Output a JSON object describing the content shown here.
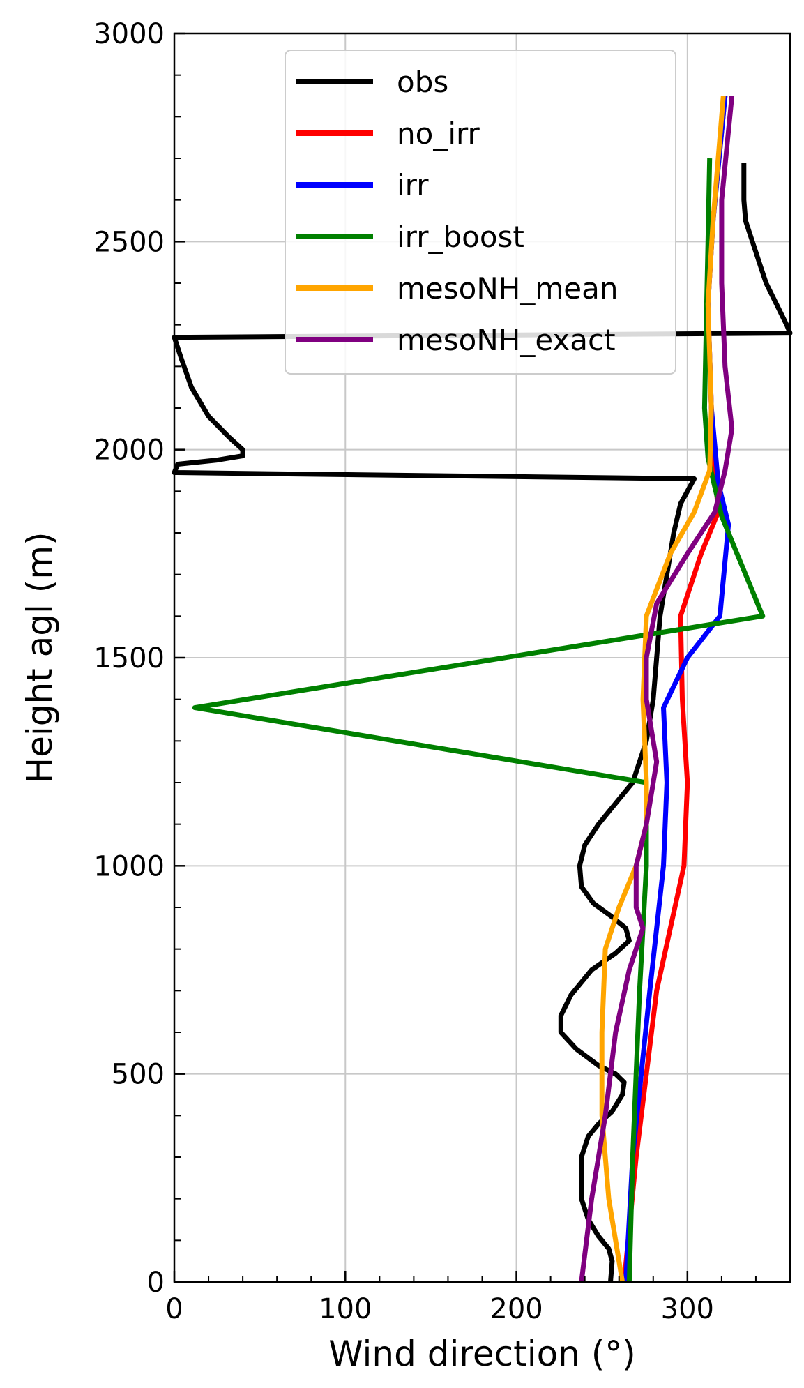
{
  "chart_data": {
    "type": "line",
    "title": "",
    "xlabel": "Wind direction (°)",
    "ylabel": "Height agl (m)",
    "xlim": [
      0,
      360
    ],
    "ylim": [
      0,
      3000
    ],
    "xticks": [
      0,
      100,
      200,
      300
    ],
    "yticks": [
      0,
      500,
      1000,
      1500,
      2000,
      2500,
      3000
    ],
    "grid": true,
    "legend_position": "top-center",
    "series": [
      {
        "name": "obs",
        "color": "#000000",
        "points": [
          [
            255,
            0
          ],
          [
            256,
            50
          ],
          [
            254,
            80
          ],
          [
            248,
            110
          ],
          [
            242,
            150
          ],
          [
            238,
            200
          ],
          [
            238,
            250
          ],
          [
            238,
            300
          ],
          [
            242,
            350
          ],
          [
            248,
            380
          ],
          [
            256,
            410
          ],
          [
            262,
            450
          ],
          [
            263,
            480
          ],
          [
            258,
            500
          ],
          [
            248,
            520
          ],
          [
            235,
            560
          ],
          [
            226,
            600
          ],
          [
            226,
            640
          ],
          [
            232,
            690
          ],
          [
            244,
            750
          ],
          [
            258,
            790
          ],
          [
            266,
            820
          ],
          [
            264,
            850
          ],
          [
            255,
            880
          ],
          [
            245,
            910
          ],
          [
            238,
            950
          ],
          [
            237,
            1000
          ],
          [
            240,
            1050
          ],
          [
            248,
            1100
          ],
          [
            258,
            1150
          ],
          [
            268,
            1200
          ],
          [
            276,
            1300
          ],
          [
            280,
            1400
          ],
          [
            282,
            1500
          ],
          [
            284,
            1600
          ],
          [
            288,
            1700
          ],
          [
            292,
            1800
          ],
          [
            296,
            1870
          ],
          [
            300,
            1900
          ],
          [
            304,
            1930
          ],
          [
            0,
            1945
          ],
          [
            2,
            1965
          ],
          [
            25,
            1975
          ],
          [
            40,
            1985
          ],
          [
            40,
            2000
          ],
          [
            32,
            2030
          ],
          [
            20,
            2080
          ],
          [
            10,
            2150
          ],
          [
            4,
            2220
          ],
          [
            0,
            2270
          ],
          [
            360,
            2280
          ],
          [
            358,
            2300
          ],
          [
            352,
            2350
          ],
          [
            346,
            2400
          ],
          [
            342,
            2450
          ],
          [
            338,
            2500
          ],
          [
            334,
            2550
          ],
          [
            333,
            2600
          ],
          [
            333,
            2650
          ],
          [
            333,
            2690
          ]
        ]
      },
      {
        "name": "no_irr",
        "color": "#ff0000",
        "points": [
          [
            263,
            0
          ],
          [
            270,
            300
          ],
          [
            282,
            700
          ],
          [
            298,
            1000
          ],
          [
            300,
            1200
          ],
          [
            297,
            1400
          ],
          [
            296,
            1600
          ],
          [
            308,
            1750
          ],
          [
            318,
            1850
          ],
          [
            316,
            1950
          ],
          [
            314,
            2100
          ],
          [
            312,
            2350
          ],
          [
            315,
            2550
          ],
          [
            322,
            2850
          ]
        ]
      },
      {
        "name": "irr",
        "color": "#0000ff",
        "points": [
          [
            264,
            0
          ],
          [
            268,
            300
          ],
          [
            278,
            700
          ],
          [
            286,
            1000
          ],
          [
            288,
            1200
          ],
          [
            286,
            1380
          ],
          [
            300,
            1500
          ],
          [
            319,
            1600
          ],
          [
            324,
            1820
          ],
          [
            318,
            1920
          ],
          [
            314,
            2100
          ],
          [
            312,
            2350
          ],
          [
            315,
            2550
          ],
          [
            322,
            2850
          ]
        ]
      },
      {
        "name": "irr_boost",
        "color": "#008000",
        "points": [
          [
            266,
            0
          ],
          [
            268,
            300
          ],
          [
            272,
            700
          ],
          [
            276,
            1000
          ],
          [
            276,
            1200
          ],
          [
            12,
            1380
          ],
          [
            344,
            1600
          ],
          [
            320,
            1840
          ],
          [
            312,
            1980
          ],
          [
            310,
            2100
          ],
          [
            311,
            2300
          ],
          [
            312,
            2500
          ],
          [
            313,
            2700
          ]
        ]
      },
      {
        "name": "mesoNH_mean",
        "color": "#ffa500",
        "points": [
          [
            262,
            0
          ],
          [
            254,
            200
          ],
          [
            250,
            400
          ],
          [
            250,
            600
          ],
          [
            252,
            800
          ],
          [
            260,
            900
          ],
          [
            270,
            1000
          ],
          [
            276,
            1100
          ],
          [
            276,
            1200
          ],
          [
            274,
            1400
          ],
          [
            276,
            1600
          ],
          [
            290,
            1750
          ],
          [
            304,
            1850
          ],
          [
            313,
            1950
          ],
          [
            314,
            2100
          ],
          [
            312,
            2350
          ],
          [
            315,
            2550
          ],
          [
            321,
            2850
          ]
        ]
      },
      {
        "name": "mesoNH_exact",
        "color": "#800080",
        "points": [
          [
            238,
            0
          ],
          [
            244,
            200
          ],
          [
            252,
            400
          ],
          [
            258,
            600
          ],
          [
            266,
            750
          ],
          [
            274,
            850
          ],
          [
            270,
            900
          ],
          [
            270,
            1000
          ],
          [
            276,
            1100
          ],
          [
            282,
            1250
          ],
          [
            276,
            1400
          ],
          [
            276,
            1500
          ],
          [
            282,
            1630
          ],
          [
            300,
            1750
          ],
          [
            316,
            1850
          ],
          [
            322,
            1950
          ],
          [
            326,
            2050
          ],
          [
            322,
            2200
          ],
          [
            320,
            2400
          ],
          [
            320,
            2600
          ],
          [
            326,
            2850
          ]
        ]
      }
    ]
  }
}
